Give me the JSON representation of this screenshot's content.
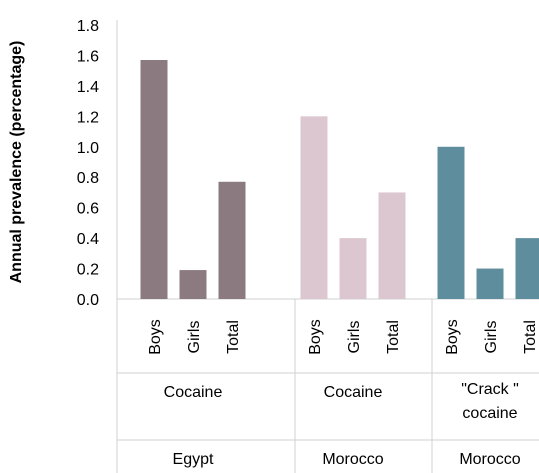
{
  "chart_data": {
    "type": "bar",
    "ylabel": "Annual prevalence (percentage)",
    "ylim": [
      0,
      1.8
    ],
    "yticks": [
      "0.0",
      "0.2",
      "0.4",
      "0.6",
      "0.8",
      "1.0",
      "1.2",
      "1.4",
      "1.6",
      "1.8"
    ],
    "grid": false,
    "groups": [
      {
        "country": "Egypt",
        "drug_lines": [
          "Cocaine"
        ],
        "color": "#8b7a80",
        "bars": [
          {
            "label": "Boys",
            "value": 1.57
          },
          {
            "label": "Girls",
            "value": 0.19
          },
          {
            "label": "Total",
            "value": 0.77
          }
        ]
      },
      {
        "country": "Morocco",
        "drug_lines": [
          "Cocaine"
        ],
        "color": "#dcc7d0",
        "bars": [
          {
            "label": "Boys",
            "value": 1.2
          },
          {
            "label": "Girls",
            "value": 0.4
          },
          {
            "label": "Total",
            "value": 0.7
          }
        ]
      },
      {
        "country": "Morocco",
        "drug_lines": [
          "\"Crack \"",
          "cocaine"
        ],
        "color": "#5e8e9e",
        "bars": [
          {
            "label": "Boys",
            "value": 1.0
          },
          {
            "label": "Girls",
            "value": 0.2
          },
          {
            "label": "Total",
            "value": 0.4
          }
        ]
      }
    ]
  }
}
